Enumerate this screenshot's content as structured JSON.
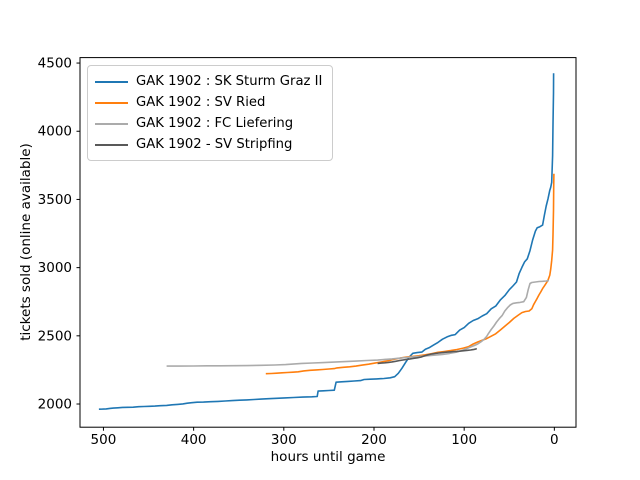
{
  "window": {
    "background": "#ffffff"
  },
  "chart_data": {
    "type": "line",
    "title": "",
    "xlabel": "hours until game",
    "ylabel": "tickets sold (online available)",
    "x_axis_inverted": true,
    "grid": false,
    "legend_position": "upper left",
    "xlim": [
      526,
      -24
    ],
    "ylim": [
      1830,
      4540
    ],
    "xticks": [
      500,
      400,
      300,
      200,
      100,
      0
    ],
    "yticks": [
      2000,
      2500,
      3000,
      3500,
      4000,
      4500
    ],
    "axis_color": "#000000",
    "series": [
      {
        "name": "GAK 1902 : SK Sturm Graz II",
        "color": "#1f77b4",
        "points": [
          [
            505,
            1962
          ],
          [
            501,
            1963
          ],
          [
            497,
            1964
          ],
          [
            493,
            1968
          ],
          [
            489,
            1970
          ],
          [
            484,
            1972
          ],
          [
            479,
            1975
          ],
          [
            473,
            1976
          ],
          [
            467,
            1977
          ],
          [
            461,
            1980
          ],
          [
            455,
            1982
          ],
          [
            449,
            1983
          ],
          [
            443,
            1985
          ],
          [
            437,
            1988
          ],
          [
            430,
            1990
          ],
          [
            424,
            1994
          ],
          [
            418,
            1997
          ],
          [
            412,
            2001
          ],
          [
            407,
            2006
          ],
          [
            402,
            2010
          ],
          [
            396,
            2013
          ],
          [
            389,
            2014
          ],
          [
            381,
            2017
          ],
          [
            373,
            2019
          ],
          [
            365,
            2022
          ],
          [
            357,
            2025
          ],
          [
            349,
            2028
          ],
          [
            341,
            2030
          ],
          [
            333,
            2033
          ],
          [
            325,
            2036
          ],
          [
            317,
            2039
          ],
          [
            308,
            2042
          ],
          [
            299,
            2045
          ],
          [
            289,
            2048
          ],
          [
            279,
            2051
          ],
          [
            269,
            2053
          ],
          [
            263,
            2055
          ],
          [
            262,
            2095
          ],
          [
            256,
            2097
          ],
          [
            250,
            2099
          ],
          [
            244,
            2101
          ],
          [
            242,
            2160
          ],
          [
            236,
            2163
          ],
          [
            229,
            2166
          ],
          [
            222,
            2169
          ],
          [
            215,
            2172
          ],
          [
            211,
            2180
          ],
          [
            204,
            2182
          ],
          [
            197,
            2184
          ],
          [
            189,
            2187
          ],
          [
            182,
            2192
          ],
          [
            177,
            2200
          ],
          [
            173,
            2225
          ],
          [
            169,
            2262
          ],
          [
            165,
            2305
          ],
          [
            161,
            2345
          ],
          [
            157,
            2372
          ],
          [
            152,
            2377
          ],
          [
            147,
            2381
          ],
          [
            143,
            2402
          ],
          [
            139,
            2412
          ],
          [
            134,
            2432
          ],
          [
            129,
            2452
          ],
          [
            124,
            2475
          ],
          [
            119,
            2492
          ],
          [
            114,
            2504
          ],
          [
            110,
            2509
          ],
          [
            105,
            2542
          ],
          [
            100,
            2560
          ],
          [
            95,
            2592
          ],
          [
            90,
            2612
          ],
          [
            85,
            2625
          ],
          [
            80,
            2645
          ],
          [
            75,
            2662
          ],
          [
            70,
            2698
          ],
          [
            65,
            2718
          ],
          [
            60,
            2762
          ],
          [
            55,
            2795
          ],
          [
            50,
            2838
          ],
          [
            46,
            2865
          ],
          [
            42,
            2895
          ],
          [
            39,
            2958
          ],
          [
            36,
            3002
          ],
          [
            33,
            3042
          ],
          [
            30,
            3065
          ],
          [
            27,
            3125
          ],
          [
            24,
            3205
          ],
          [
            21,
            3268
          ],
          [
            19,
            3292
          ],
          [
            16,
            3300
          ],
          [
            13,
            3312
          ],
          [
            11,
            3385
          ],
          [
            9,
            3452
          ],
          [
            7,
            3505
          ],
          [
            5,
            3568
          ],
          [
            4,
            3588
          ],
          [
            3,
            3625
          ],
          [
            2,
            3820
          ],
          [
            1.5,
            4050
          ],
          [
            1,
            4280
          ],
          [
            0.8,
            4425
          ]
        ]
      },
      {
        "name": "GAK 1902 : SV Ried",
        "color": "#ff7f0e",
        "points": [
          [
            320,
            2222
          ],
          [
            314,
            2224
          ],
          [
            308,
            2226
          ],
          [
            302,
            2229
          ],
          [
            296,
            2231
          ],
          [
            290,
            2233
          ],
          [
            284,
            2236
          ],
          [
            278,
            2243
          ],
          [
            271,
            2247
          ],
          [
            264,
            2250
          ],
          [
            257,
            2253
          ],
          [
            250,
            2257
          ],
          [
            244,
            2260
          ],
          [
            241,
            2265
          ],
          [
            234,
            2269
          ],
          [
            227,
            2273
          ],
          [
            220,
            2278
          ],
          [
            213,
            2285
          ],
          [
            206,
            2292
          ],
          [
            199,
            2300
          ],
          [
            192,
            2308
          ],
          [
            185,
            2317
          ],
          [
            178,
            2328
          ],
          [
            171,
            2337
          ],
          [
            164,
            2344
          ],
          [
            157,
            2349
          ],
          [
            150,
            2354
          ],
          [
            143,
            2361
          ],
          [
            136,
            2370
          ],
          [
            129,
            2379
          ],
          [
            122,
            2385
          ],
          [
            115,
            2392
          ],
          [
            108,
            2400
          ],
          [
            101,
            2410
          ],
          [
            95,
            2421
          ],
          [
            90,
            2440
          ],
          [
            85,
            2455
          ],
          [
            80,
            2467
          ],
          [
            75,
            2480
          ],
          [
            70,
            2497
          ],
          [
            65,
            2515
          ],
          [
            60,
            2542
          ],
          [
            55,
            2570
          ],
          [
            50,
            2598
          ],
          [
            45,
            2628
          ],
          [
            40,
            2652
          ],
          [
            36,
            2670
          ],
          [
            32,
            2678
          ],
          [
            28,
            2682
          ],
          [
            25,
            2698
          ],
          [
            23,
            2728
          ],
          [
            21,
            2752
          ],
          [
            19,
            2775
          ],
          [
            17,
            2800
          ],
          [
            15,
            2822
          ],
          [
            13,
            2846
          ],
          [
            11,
            2866
          ],
          [
            9,
            2886
          ],
          [
            7,
            2908
          ],
          [
            5,
            2945
          ],
          [
            4,
            2988
          ],
          [
            3,
            3052
          ],
          [
            2,
            3130
          ],
          [
            1.5,
            3240
          ],
          [
            1,
            3420
          ],
          [
            0.7,
            3590
          ],
          [
            0.5,
            3688
          ]
        ]
      },
      {
        "name": "GAK 1902 : FC Liefering",
        "color": "#ababab",
        "points": [
          [
            430,
            2278
          ],
          [
            415,
            2278
          ],
          [
            400,
            2279
          ],
          [
            385,
            2280
          ],
          [
            370,
            2280
          ],
          [
            355,
            2281
          ],
          [
            340,
            2282
          ],
          [
            325,
            2284
          ],
          [
            310,
            2286
          ],
          [
            298,
            2289
          ],
          [
            288,
            2294
          ],
          [
            280,
            2298
          ],
          [
            268,
            2301
          ],
          [
            256,
            2304
          ],
          [
            244,
            2307
          ],
          [
            232,
            2311
          ],
          [
            220,
            2315
          ],
          [
            208,
            2319
          ],
          [
            196,
            2322
          ],
          [
            188,
            2327
          ],
          [
            180,
            2331
          ],
          [
            172,
            2336
          ],
          [
            164,
            2341
          ],
          [
            156,
            2346
          ],
          [
            148,
            2350
          ],
          [
            140,
            2354
          ],
          [
            132,
            2359
          ],
          [
            124,
            2364
          ],
          [
            116,
            2371
          ],
          [
            109,
            2380
          ],
          [
            103,
            2392
          ],
          [
            98,
            2404
          ],
          [
            93,
            2418
          ],
          [
            89,
            2428
          ],
          [
            85,
            2440
          ],
          [
            81,
            2458
          ],
          [
            78,
            2474
          ],
          [
            75,
            2496
          ],
          [
            73,
            2518
          ],
          [
            70,
            2546
          ],
          [
            67,
            2572
          ],
          [
            64,
            2601
          ],
          [
            61,
            2626
          ],
          [
            58,
            2648
          ],
          [
            55,
            2682
          ],
          [
            52,
            2706
          ],
          [
            49,
            2726
          ],
          [
            46,
            2738
          ],
          [
            42,
            2742
          ],
          [
            38,
            2745
          ],
          [
            34,
            2750
          ],
          [
            31,
            2782
          ],
          [
            29,
            2838
          ],
          [
            27,
            2884
          ],
          [
            25,
            2891
          ],
          [
            21,
            2895
          ],
          [
            17,
            2898
          ],
          [
            13,
            2900
          ],
          [
            9,
            2902
          ],
          [
            6,
            2905
          ]
        ]
      },
      {
        "name": "GAK 1902 - SV Stripfing",
        "color": "#595959",
        "points": [
          [
            196,
            2298
          ],
          [
            192,
            2300
          ],
          [
            188,
            2302
          ],
          [
            184,
            2305
          ],
          [
            180,
            2309
          ],
          [
            176,
            2313
          ],
          [
            172,
            2318
          ],
          [
            168,
            2323
          ],
          [
            164,
            2327
          ],
          [
            160,
            2331
          ],
          [
            156,
            2335
          ],
          [
            152,
            2339
          ],
          [
            148,
            2344
          ],
          [
            144,
            2353
          ],
          [
            140,
            2361
          ],
          [
            136,
            2367
          ],
          [
            132,
            2371
          ],
          [
            128,
            2374
          ],
          [
            124,
            2377
          ],
          [
            120,
            2380
          ],
          [
            116,
            2382
          ],
          [
            112,
            2384
          ],
          [
            108,
            2386
          ],
          [
            104,
            2388
          ],
          [
            100,
            2391
          ],
          [
            96,
            2394
          ],
          [
            93,
            2396
          ],
          [
            90,
            2399
          ],
          [
            88,
            2402
          ],
          [
            86,
            2406
          ]
        ]
      }
    ]
  }
}
